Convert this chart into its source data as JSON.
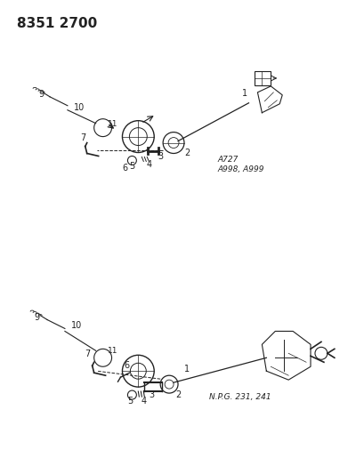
{
  "title": "8351 2700",
  "bg_color": "#ffffff",
  "title_fontsize": 11,
  "title_fontweight": "bold",
  "diagram1_label": "A727\nA998, A999",
  "diagram2_label": "N.P.G. 231, 241",
  "part_numbers": [
    "1",
    "2",
    "3",
    "4",
    "5",
    "6",
    "7",
    "9",
    "10",
    "11"
  ],
  "line_color": "#222222",
  "component_color": "#333333"
}
